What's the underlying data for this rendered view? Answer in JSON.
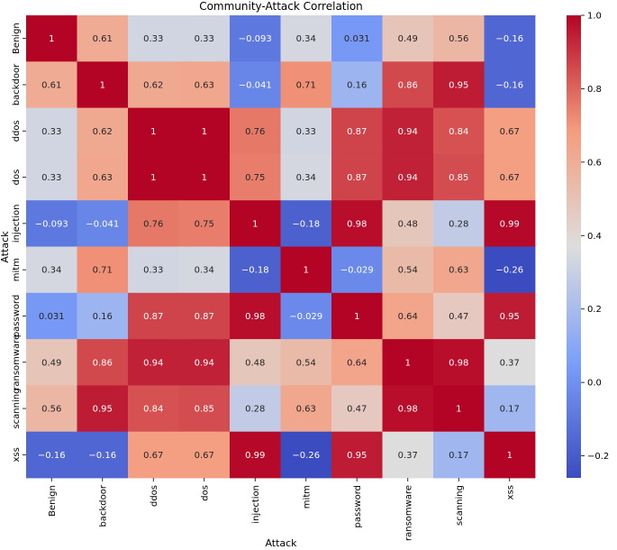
{
  "chart_data": {
    "type": "heatmap",
    "title": "Community-Attack Correlation",
    "xlabel": "Attack",
    "ylabel": "Attack",
    "categories": [
      "Benign",
      "backdoor",
      "ddos",
      "dos",
      "injection",
      "mitm",
      "password",
      "ransomware",
      "scanning",
      "xss"
    ],
    "matrix": [
      [
        1,
        0.61,
        0.33,
        0.33,
        -0.093,
        0.34,
        0.031,
        0.49,
        0.56,
        -0.16
      ],
      [
        0.61,
        1,
        0.62,
        0.63,
        -0.041,
        0.71,
        0.16,
        0.86,
        0.95,
        -0.16
      ],
      [
        0.33,
        0.62,
        1,
        1,
        0.76,
        0.33,
        0.87,
        0.94,
        0.84,
        0.67
      ],
      [
        0.33,
        0.63,
        1,
        1,
        0.75,
        0.34,
        0.87,
        0.94,
        0.85,
        0.67
      ],
      [
        -0.093,
        -0.041,
        0.76,
        0.75,
        1,
        -0.18,
        0.98,
        0.48,
        0.28,
        0.99
      ],
      [
        0.34,
        0.71,
        0.33,
        0.34,
        -0.18,
        1,
        -0.029,
        0.54,
        0.63,
        -0.26
      ],
      [
        0.031,
        0.16,
        0.87,
        0.87,
        0.98,
        -0.029,
        1,
        0.64,
        0.47,
        0.95
      ],
      [
        0.49,
        0.86,
        0.94,
        0.94,
        0.48,
        0.54,
        0.64,
        1,
        0.98,
        0.37
      ],
      [
        0.56,
        0.95,
        0.84,
        0.85,
        0.28,
        0.63,
        0.47,
        0.98,
        1,
        0.17
      ],
      [
        -0.16,
        -0.16,
        0.67,
        0.67,
        0.99,
        -0.26,
        0.95,
        0.37,
        0.17,
        1
      ]
    ],
    "colorbar": {
      "colormap": "coolwarm",
      "vmin": -0.26,
      "vmax": 1.0,
      "ticks": [
        1.0,
        0.8,
        0.6,
        0.4,
        0.2,
        0.0,
        -0.2
      ],
      "tick_labels": [
        "1.0",
        "0.8",
        "0.6",
        "0.4",
        "0.2",
        "0.0",
        "−0.2"
      ]
    },
    "annotated": true,
    "grid": false
  }
}
